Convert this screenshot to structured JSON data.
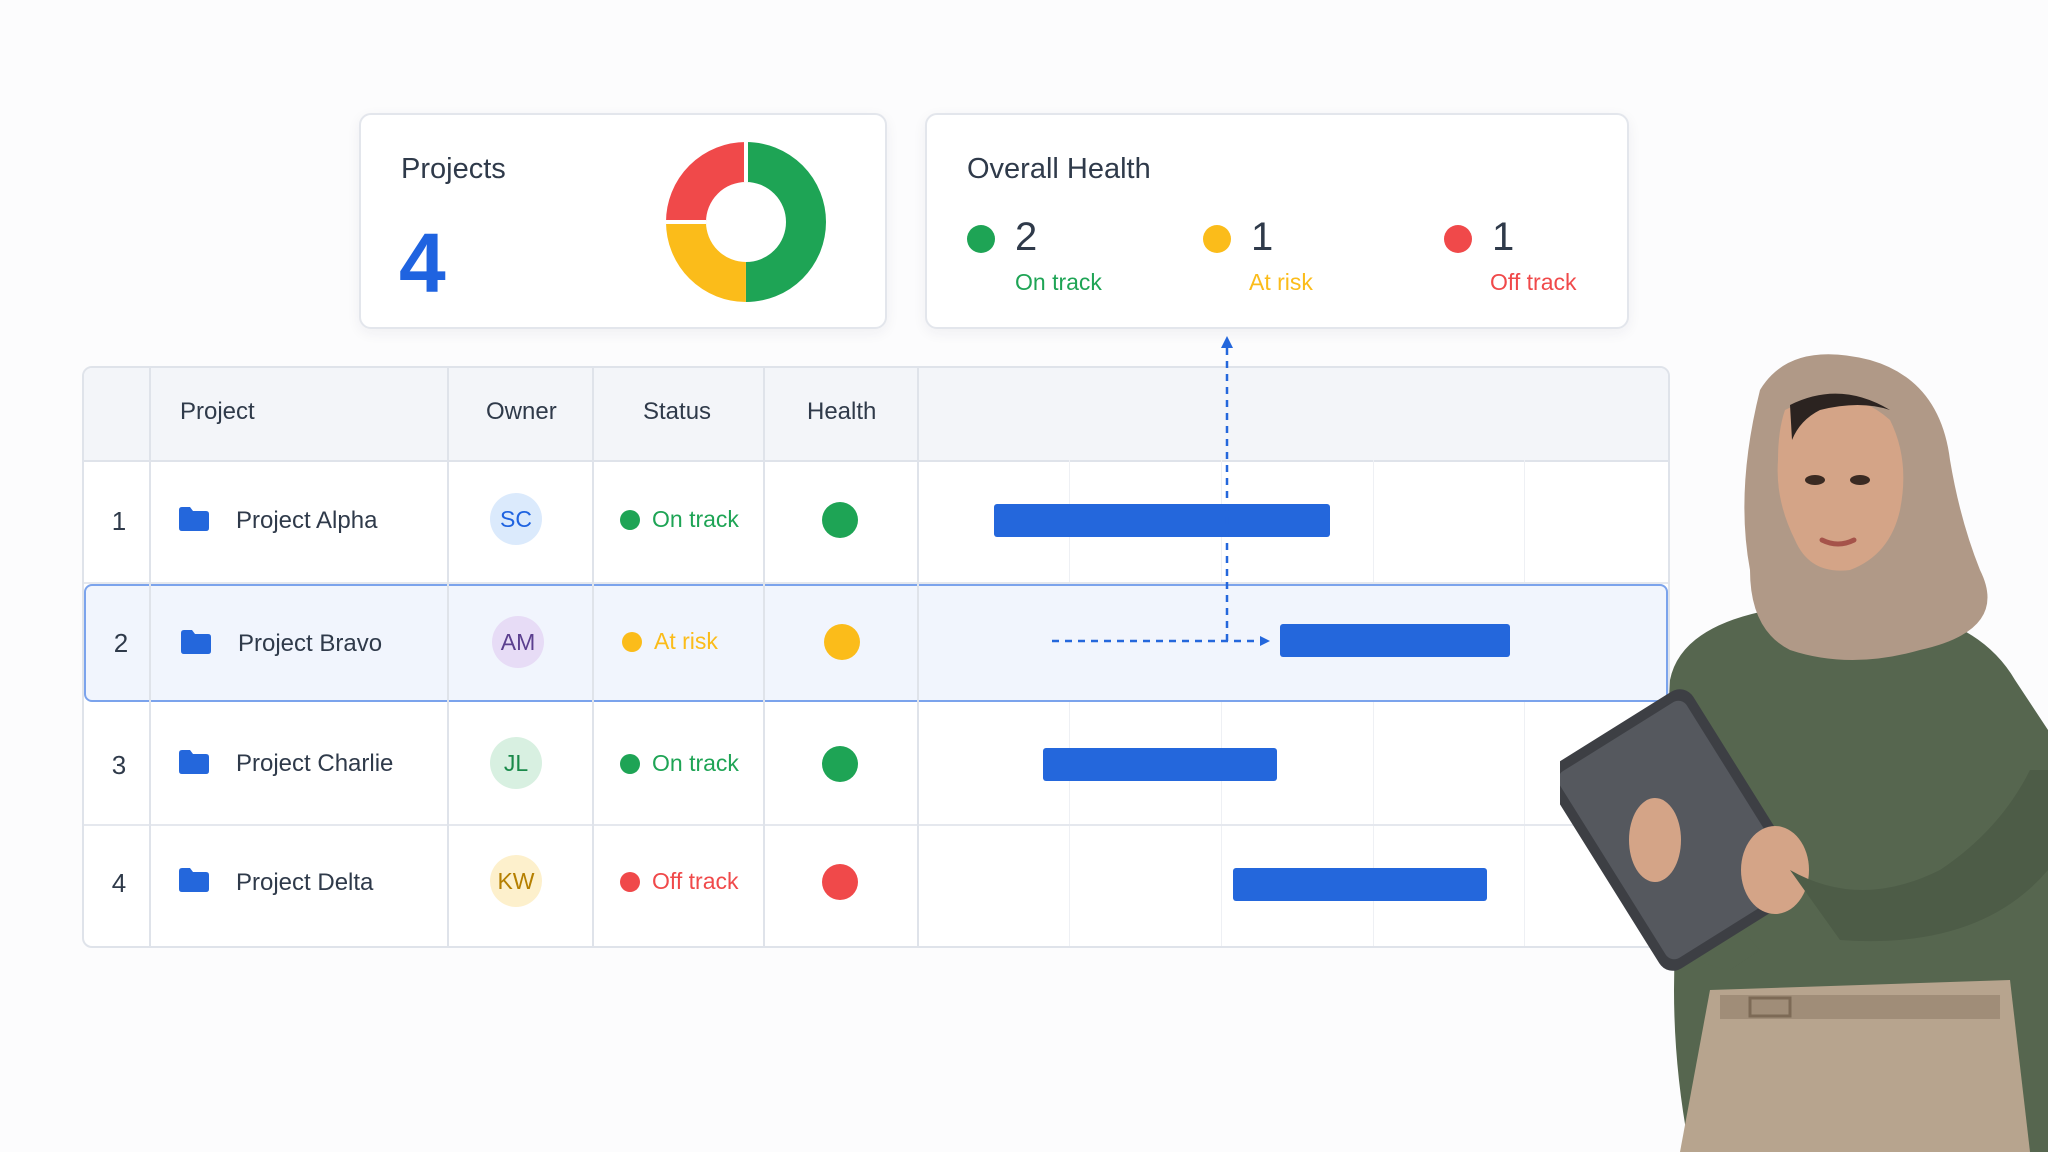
{
  "projects_card": {
    "title": "Projects",
    "count": "4",
    "donut": [
      {
        "label": "On track",
        "value": 2,
        "color": "#1ea455"
      },
      {
        "label": "At risk",
        "value": 1,
        "color": "#fbbc1a"
      },
      {
        "label": "Off track",
        "value": 1,
        "color": "#f0494a"
      }
    ]
  },
  "health_card": {
    "title": "Overall Health",
    "items": [
      {
        "count": "2",
        "label": "On track",
        "color": "#1ea455"
      },
      {
        "count": "1",
        "label": "At risk",
        "color": "#fbbc1a"
      },
      {
        "count": "1",
        "label": "Off track",
        "color": "#f0494a"
      }
    ]
  },
  "table": {
    "headers": {
      "project": "Project",
      "owner": "Owner",
      "status": "Status",
      "health": "Health"
    },
    "rows": [
      {
        "num": "1",
        "name": "Project Alpha",
        "owner": "SC",
        "status": "On track"
      },
      {
        "num": "2",
        "name": "Project Bravo",
        "owner": "AM",
        "status": "At risk"
      },
      {
        "num": "3",
        "name": "Project Charlie",
        "owner": "JL",
        "status": "On track"
      },
      {
        "num": "4",
        "name": "Project Delta",
        "owner": "KW",
        "status": "Off track"
      }
    ]
  },
  "colors": {
    "accent": "#2467dc",
    "on_track": "#1ea455",
    "at_risk": "#fbbc1a",
    "off_track": "#f0494a"
  }
}
